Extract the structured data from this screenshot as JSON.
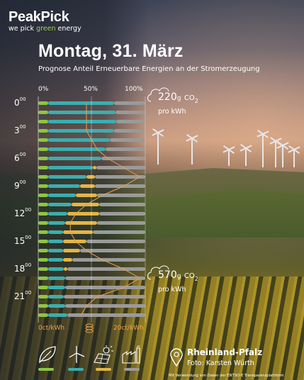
{
  "brand": {
    "name": "PeakPick",
    "tagline_pre": "we pick ",
    "tagline_green": "green",
    "tagline_post": " energy"
  },
  "title": "Montag, 31. März",
  "subtitle": "Prognose Anteil Erneuerbare Energien an der Stromerzeugung",
  "axis_top": [
    "0%",
    "50%",
    "100%"
  ],
  "axis_bottom": {
    "left": "0ct/kWh",
    "right": "20ct/kWh"
  },
  "hours": [
    {
      "h": "0",
      "m": "00"
    },
    {
      "h": "3",
      "m": "00"
    },
    {
      "h": "6",
      "m": "00"
    },
    {
      "h": "9",
      "m": "00"
    },
    {
      "h": "12",
      "m": "00"
    },
    {
      "h": "15",
      "m": "00"
    },
    {
      "h": "18",
      "m": "00"
    },
    {
      "h": "21",
      "m": "00"
    }
  ],
  "co2_top": {
    "value": "220",
    "unit_g": "g",
    "co2": "CO",
    "sub": "2",
    "per": "pro kWh"
  },
  "co2_bottom": {
    "value": "570",
    "unit_g": "g",
    "co2": "CO",
    "sub": "2",
    "per": "pro kWh"
  },
  "location": {
    "region": "Rheinland-Pfalz",
    "photo": "Foto: Karsten Würth"
  },
  "footnote": "Mit Verwendung von Daten der ENTSO-E Transparenzplattform",
  "colors": {
    "biomass": "#8dc63f",
    "wind": "#3aaeb0",
    "solar": "#e3b545",
    "other": "#9a9a9a",
    "price_line": "#e8a050"
  },
  "legend_icons": [
    "leaf-icon",
    "wind-turbine-icon",
    "solar-panel-icon",
    "factory-icon"
  ],
  "chart_data": {
    "type": "bar",
    "x_unit": "percent",
    "xlim": [
      0,
      100
    ],
    "price_xlim": [
      0,
      20
    ],
    "price_unit": "ct/kWh",
    "series_order": [
      "biomass",
      "wind",
      "solar",
      "other"
    ],
    "rows": [
      {
        "hour": 0,
        "biomass": 9,
        "wind": 62,
        "solar": 0,
        "price": 9
      },
      {
        "hour": 1,
        "biomass": 9,
        "wind": 63,
        "solar": 0,
        "price": 9
      },
      {
        "hour": 2,
        "biomass": 9,
        "wind": 64,
        "solar": 0,
        "price": 9
      },
      {
        "hour": 3,
        "biomass": 9,
        "wind": 62,
        "solar": 0,
        "price": 9
      },
      {
        "hour": 4,
        "biomass": 9,
        "wind": 58,
        "solar": 0,
        "price": 10
      },
      {
        "hour": 5,
        "biomass": 9,
        "wind": 54,
        "solar": 0,
        "price": 11
      },
      {
        "hour": 6,
        "biomass": 9,
        "wind": 50,
        "solar": 0,
        "price": 13
      },
      {
        "hour": 7,
        "biomass": 9,
        "wind": 42,
        "solar": 3,
        "price": 16
      },
      {
        "hour": 8,
        "biomass": 9,
        "wind": 36,
        "solar": 8,
        "price": 19
      },
      {
        "hour": 9,
        "biomass": 9,
        "wind": 30,
        "solar": 14,
        "price": 16
      },
      {
        "hour": 10,
        "biomass": 9,
        "wind": 26,
        "solar": 20,
        "price": 12
      },
      {
        "hour": 11,
        "biomass": 9,
        "wind": 22,
        "solar": 26,
        "price": 9
      },
      {
        "hour": 12,
        "biomass": 9,
        "wind": 18,
        "solar": 30,
        "price": 7
      },
      {
        "hour": 13,
        "biomass": 9,
        "wind": 16,
        "solar": 30,
        "price": 6
      },
      {
        "hour": 14,
        "biomass": 9,
        "wind": 14,
        "solar": 28,
        "price": 6
      },
      {
        "hour": 15,
        "biomass": 9,
        "wind": 14,
        "solar": 22,
        "price": 7
      },
      {
        "hour": 16,
        "biomass": 9,
        "wind": 14,
        "solar": 16,
        "price": 9
      },
      {
        "hour": 17,
        "biomass": 9,
        "wind": 14,
        "solar": 9,
        "price": 12
      },
      {
        "hour": 18,
        "biomass": 9,
        "wind": 15,
        "solar": 3,
        "price": 16
      },
      {
        "hour": 19,
        "biomass": 9,
        "wind": 16,
        "solar": 0,
        "price": 19
      },
      {
        "hour": 20,
        "biomass": 9,
        "wind": 16,
        "solar": 0,
        "price": 16
      },
      {
        "hour": 21,
        "biomass": 9,
        "wind": 15,
        "solar": 0,
        "price": 11
      },
      {
        "hour": 22,
        "biomass": 9,
        "wind": 16,
        "solar": 0,
        "price": 9
      },
      {
        "hour": 23,
        "biomass": 9,
        "wind": 18,
        "solar": 0,
        "price": 8
      }
    ]
  }
}
